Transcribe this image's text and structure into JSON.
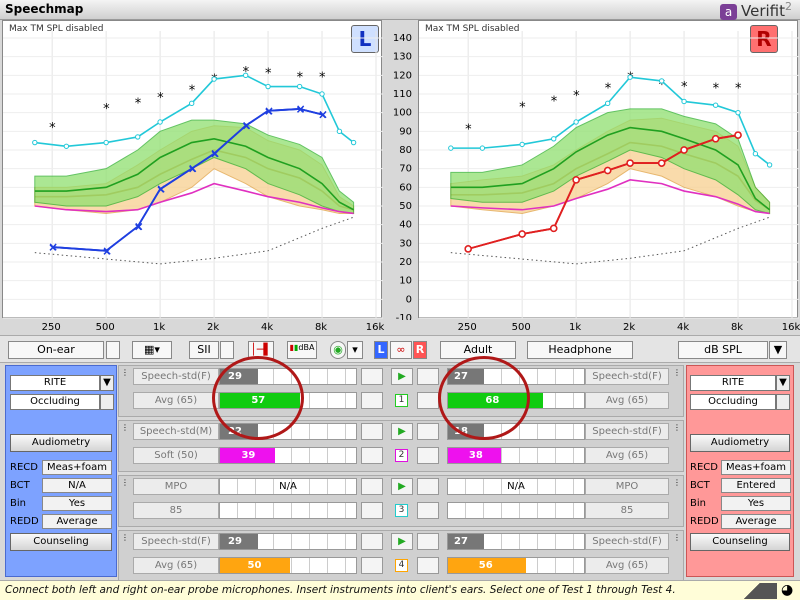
{
  "app": {
    "title": "Speechmap",
    "brand": "Verifit",
    "brand_version": "2",
    "brand_logo": "a"
  },
  "graphs": {
    "left": {
      "note": "Max TM SPL disabled",
      "ear": "L"
    },
    "right": {
      "note": "Max TM SPL disabled",
      "ear": "R"
    }
  },
  "axes": {
    "y_ticks": [
      "140",
      "130",
      "120",
      "110",
      "100",
      "90",
      "80",
      "70",
      "60",
      "50",
      "40",
      "30",
      "20",
      "10",
      "0",
      "-10"
    ],
    "x_ticks": [
      "250",
      "500",
      "1k",
      "2k",
      "4k",
      "8k",
      "16k"
    ]
  },
  "chart_data": [
    {
      "type": "line",
      "ear": "left",
      "x": [
        250,
        500,
        750,
        1000,
        1500,
        2000,
        3000,
        4000,
        6000,
        8000
      ],
      "series": [
        {
          "role": "aided-speech-marker",
          "color": "#1f3fe0",
          "values": [
            28,
            26,
            39,
            59,
            70,
            78,
            93,
            101,
            102,
            99
          ]
        }
      ],
      "uncomfortable": {
        "x": [
          250,
          500,
          750,
          1000,
          1500,
          2000,
          3000,
          4000,
          6000,
          8000
        ],
        "values": [
          94,
          104,
          107,
          110,
          114,
          120,
          124,
          123,
          121,
          121
        ]
      },
      "threshold": {
        "x": [
          200,
          300,
          500,
          750,
          1000,
          1500,
          2000,
          3000,
          4000,
          6000,
          8000,
          10000,
          12000
        ],
        "values": [
          77,
          80,
          83,
          84,
          87,
          92,
          100,
          110,
          121,
          120,
          114,
          112,
          94
        ]
      }
    },
    {
      "type": "line",
      "ear": "right",
      "x": [
        250,
        500,
        750,
        1000,
        1500,
        2000,
        3000,
        4000,
        6000,
        8000
      ],
      "series": [
        {
          "role": "aided-speech-marker",
          "color": "#e02020",
          "values": [
            27,
            35,
            38,
            64,
            69,
            73,
            73,
            80,
            86,
            88
          ]
        }
      ],
      "uncomfortable": {
        "x": [
          250,
          500,
          750,
          1000,
          1500,
          2000,
          3000,
          4000,
          6000,
          8000
        ],
        "values": [
          93,
          105,
          108,
          111,
          115,
          121,
          117,
          116,
          115,
          115
        ]
      }
    }
  ],
  "toolbar": {
    "mode": "On-ear",
    "sii": "SII",
    "dba": "dBA",
    "age": "Adult",
    "transducer": "Headphone",
    "units": "dB SPL",
    "link_l": "L",
    "link_r": "R"
  },
  "left_panel": {
    "instrument": "RITE",
    "coupling": "Occluding",
    "audiometry": "Audiometry",
    "counseling": "Counseling",
    "rows": [
      {
        "label": "RECD",
        "value": "Meas+foam"
      },
      {
        "label": "BCT",
        "value": "N/A"
      },
      {
        "label": "Bin",
        "value": "Yes"
      },
      {
        "label": "REDD",
        "value": "Average"
      }
    ]
  },
  "right_panel": {
    "instrument": "RITE",
    "coupling": "Occluding",
    "audiometry": "Audiometry",
    "counseling": "Counseling",
    "rows": [
      {
        "label": "RECD",
        "value": "Meas+foam"
      },
      {
        "label": "BCT",
        "value": "Entered"
      },
      {
        "label": "Bin",
        "value": "Yes"
      },
      {
        "label": "REDD",
        "value": "Average"
      }
    ]
  },
  "tests": [
    {
      "num": "1",
      "color": "#22cc22",
      "stim_l": "Speech-std(F)",
      "level_l": "Avg (65)",
      "stim_r": "Speech-std(F)",
      "level_r": "Avg (65)",
      "unaided_l": "29",
      "unaided_r": "27",
      "aided_l": "57",
      "aided_r": "68",
      "aided_color": "#11cc11"
    },
    {
      "num": "2",
      "color": "#e010e0",
      "stim_l": "Speech-std(M)",
      "level_l": "Soft (50)",
      "stim_r": "Speech-std(F)",
      "level_r": "Avg (65)",
      "unaided_l": "22",
      "unaided_r": "18",
      "aided_l": "39",
      "aided_r": "38",
      "aided_color": "#ee11ee"
    },
    {
      "num": "3",
      "color": "#22cccc",
      "stim_l": "MPO",
      "level_l": "85",
      "stim_r": "MPO",
      "level_r": "85",
      "unaided_l": "N/A",
      "unaided_r": "N/A",
      "aided_l": "",
      "aided_r": "",
      "aided_color": "#22cccc"
    },
    {
      "num": "4",
      "color": "#ffa500",
      "stim_l": "Speech-std(F)",
      "level_l": "Avg (65)",
      "stim_r": "Speech-std(F)",
      "level_r": "Avg (65)",
      "unaided_l": "29",
      "unaided_r": "27",
      "aided_l": "50",
      "aided_r": "56",
      "aided_color": "#ffa510"
    }
  ],
  "status": "Connect both left and right on-ear probe microphones.  Insert instruments into client's ears.  Select one of Test 1 through Test 4."
}
